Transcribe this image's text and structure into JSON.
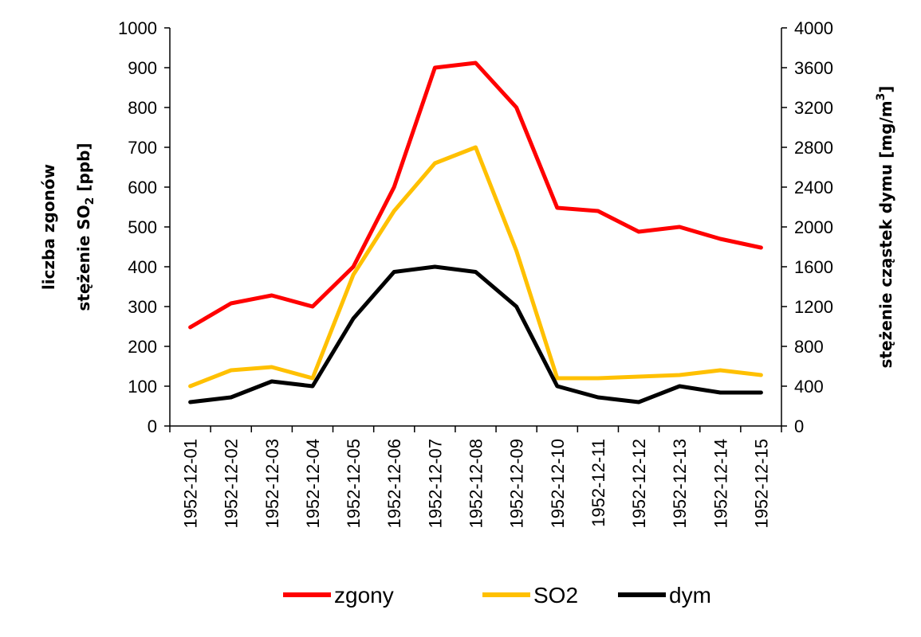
{
  "chart_data": {
    "type": "line",
    "x": [
      "1952-12-01",
      "1952-12-02",
      "1952-12-03",
      "1952-12-04",
      "1952-12-05",
      "1952-12-06",
      "1952-12-07",
      "1952-12-08",
      "1952-12-09",
      "1952-12-10",
      "1952-12-11",
      "1952-12-12",
      "1952-12-13",
      "1952-12-14",
      "1952-12-15"
    ],
    "series": [
      {
        "name": "zgony",
        "axis": "left",
        "color": "#ff0000",
        "values": [
          248,
          308,
          328,
          300,
          400,
          600,
          900,
          912,
          800,
          548,
          540,
          488,
          500,
          470,
          448
        ]
      },
      {
        "name": "SO2",
        "axis": "left",
        "color": "#ffc000",
        "values": [
          100,
          140,
          148,
          120,
          380,
          540,
          660,
          700,
          440,
          120,
          120,
          124,
          128,
          140,
          128
        ]
      },
      {
        "name": "dym",
        "axis": "right",
        "color": "#000000",
        "values": [
          240,
          288,
          448,
          400,
          1080,
          1548,
          1600,
          1548,
          1200,
          400,
          288,
          240,
          400,
          336,
          336
        ]
      }
    ],
    "yleft": {
      "label_line1": "liczba zgonów",
      "label_line2_prefix": "stężenie SO",
      "label_line2_sub": "2",
      "label_line2_suffix": " [ppb]",
      "ylim": [
        0,
        1000
      ],
      "ticks": [
        0,
        100,
        200,
        300,
        400,
        500,
        600,
        700,
        800,
        900,
        1000
      ]
    },
    "yright": {
      "label_prefix": "stężenie cząstek dymu [mg/m",
      "label_sup": "3",
      "label_suffix": "]",
      "ylim": [
        0,
        4000
      ],
      "ticks": [
        0,
        400,
        800,
        1200,
        1600,
        2000,
        2400,
        2800,
        3200,
        3600,
        4000
      ]
    },
    "grid": false,
    "legend_position": "bottom"
  }
}
